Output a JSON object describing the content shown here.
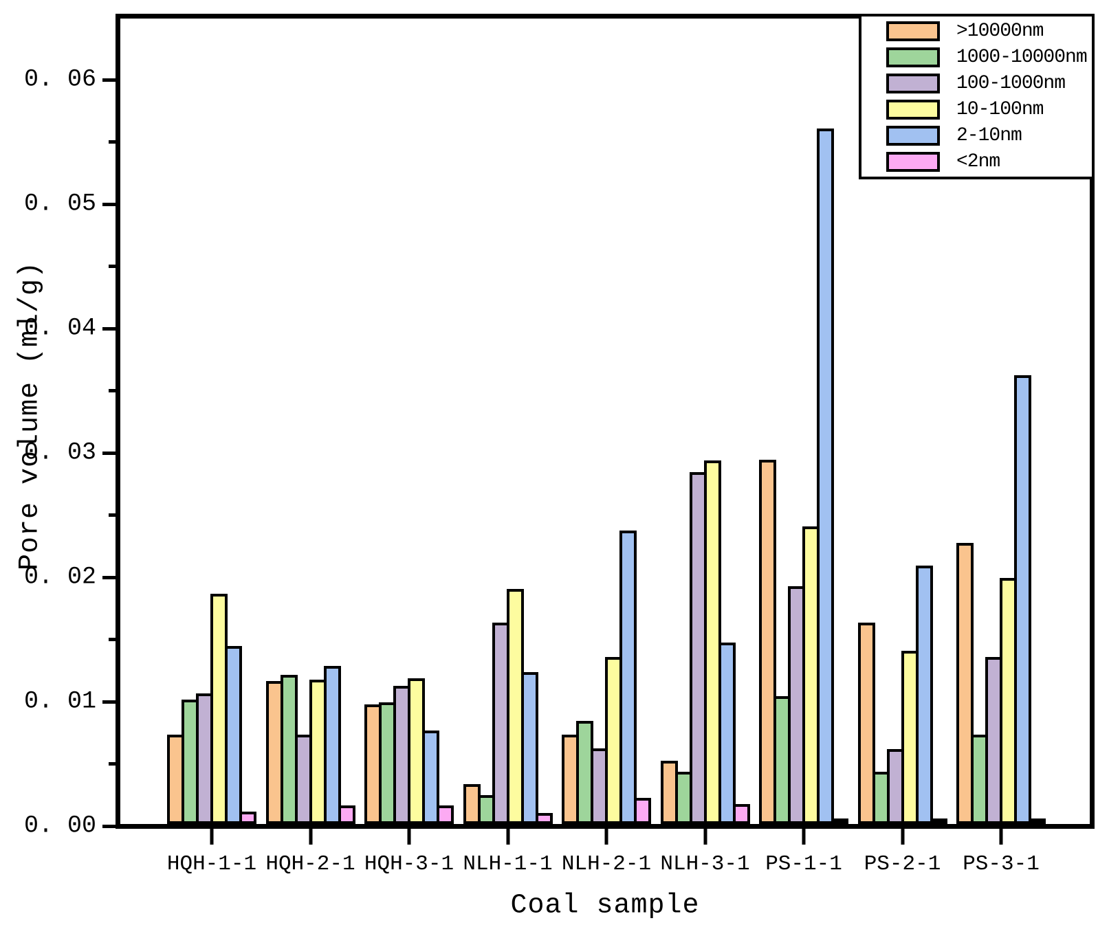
{
  "figure": {
    "background": "#ffffff",
    "frame_color": "#000000"
  },
  "axes": {
    "x_title": "Coal sample",
    "y_title": "Pore volume (ml/g)"
  },
  "chart_data": {
    "type": "bar",
    "xlabel": "Coal sample",
    "ylabel": "Pore volume (ml/g)",
    "categories": [
      "HQH-1-1",
      "HQH-2-1",
      "HQH-3-1",
      "NLH-1-1",
      "NLH-2-1",
      "NLH-3-1",
      "PS-1-1",
      "PS-2-1",
      "PS-3-1"
    ],
    "series": [
      {
        "name": ">10000nm",
        "color": "#FAC48E",
        "values": [
          0.0072,
          0.0115,
          0.0096,
          0.0032,
          0.0072,
          0.0051,
          0.0293,
          0.0162,
          0.0226
        ]
      },
      {
        "name": "1000-10000nm",
        "color": "#9ED59B",
        "values": [
          0.01,
          0.012,
          0.0098,
          0.0023,
          0.0083,
          0.0042,
          0.0103,
          0.0042,
          0.0072
        ]
      },
      {
        "name": "100-1000nm",
        "color": "#C1B1D3",
        "values": [
          0.0105,
          0.0072,
          0.0111,
          0.0162,
          0.0061,
          0.0283,
          0.0191,
          0.006,
          0.0134
        ]
      },
      {
        "name": "10-100nm",
        "color": "#FDFC9F",
        "values": [
          0.0185,
          0.0116,
          0.0117,
          0.0189,
          0.0134,
          0.0292,
          0.0239,
          0.0139,
          0.0198
        ]
      },
      {
        "name": "2-10nm",
        "color": "#A1C1F1",
        "values": [
          0.0143,
          0.0127,
          0.0075,
          0.0122,
          0.0236,
          0.0146,
          0.0559,
          0.0208,
          0.0361
        ]
      },
      {
        "name": "<2nm",
        "color": "#FCAAF3",
        "values": [
          0.001,
          0.0015,
          0.0015,
          0.0009,
          0.0021,
          0.0016,
          0.0002,
          0.0002,
          0.0002
        ]
      }
    ],
    "bar_border_color": "#000000",
    "y_axis": {
      "min": 0,
      "max": 0.065,
      "major_ticks": [
        0.0,
        0.01,
        0.02,
        0.03,
        0.04,
        0.05,
        0.06
      ],
      "major_tick_labels": [
        "0. 00",
        "0. 01",
        "0. 02",
        "0. 03",
        "0. 04",
        "0. 05",
        "0. 06"
      ],
      "minor_tick_step": 0.005
    },
    "grid": false,
    "legend_position": "top-right"
  }
}
